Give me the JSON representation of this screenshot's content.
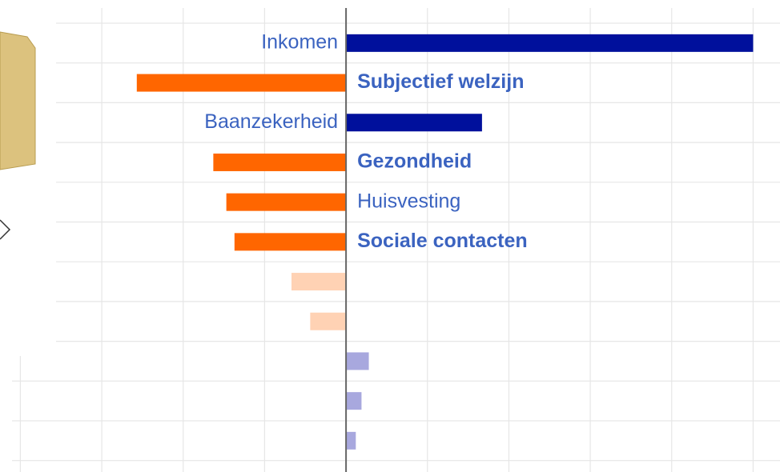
{
  "chart_data": {
    "type": "bar",
    "orientation": "horizontal",
    "categories": [
      "Inkomen",
      "Subjectief welzijn",
      "Baanzekerheid",
      "Gezondheid",
      "Huisvesting",
      "Sociale contacten",
      null,
      null,
      null,
      null,
      null
    ],
    "values": [
      5.0,
      -2.57,
      1.67,
      -1.63,
      -1.47,
      -1.37,
      -0.67,
      -0.44,
      0.28,
      0.19,
      0.12
    ],
    "colors": [
      "#00109c",
      "#ff6600",
      "#00109c",
      "#ff6600",
      "#ff6600",
      "#ff6600",
      "#ffd2b4",
      "#ffd2b4",
      "#a8a8de",
      "#a8a8de",
      "#a8a8de"
    ],
    "label_bold": [
      false,
      true,
      false,
      true,
      false,
      true,
      false,
      false,
      false,
      false,
      false
    ],
    "label_color": "#3b63c0",
    "xlim": [
      -4.25,
      5.33
    ],
    "xticks": [
      -4,
      -3,
      -2,
      -1,
      0,
      1,
      2,
      3,
      4,
      5
    ],
    "grid": true
  }
}
